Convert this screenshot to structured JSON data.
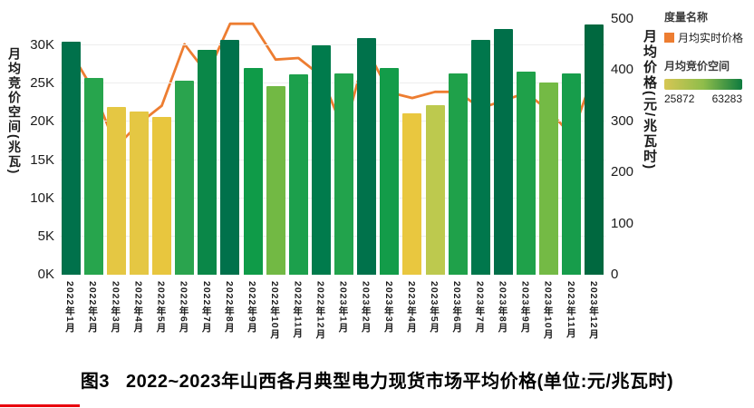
{
  "chart_data": {
    "type": "bar+line",
    "title": "",
    "categories": [
      "2022年1月",
      "2022年2月",
      "2022年3月",
      "2022年4月",
      "2022年5月",
      "2022年6月",
      "2022年7月",
      "2022年8月",
      "2022年9月",
      "2022年10月",
      "2022年11月",
      "2022年12月",
      "2023年1月",
      "2023年2月",
      "2023年3月",
      "2023年4月",
      "2023年5月",
      "2023年6月",
      "2023年7月",
      "2023年8月",
      "2023年9月",
      "2023年10月",
      "2023年11月",
      "2023年12月"
    ],
    "series": [
      {
        "name": "月均竞价空间",
        "type": "bar",
        "axis": "left",
        "values": [
          30500,
          25800,
          22000,
          21300,
          20700,
          25400,
          29400,
          30700,
          27100,
          24700,
          26200,
          30000,
          26300,
          31000,
          27100,
          21100,
          22200,
          26300,
          30700,
          32200,
          26600,
          25100,
          26300,
          32800
        ],
        "colors": [
          "#00714B",
          "#27A54D",
          "#E5C743",
          "#E5C743",
          "#E8C63E",
          "#2AA44E",
          "#0A8748",
          "#00714B",
          "#0F9B48",
          "#72B944",
          "#1CA04C",
          "#007B4C",
          "#22A34C",
          "#00724B",
          "#139C49",
          "#E9C73F",
          "#BDC94E",
          "#1FA14A",
          "#00774C",
          "#006F49",
          "#1FA14A",
          "#74BA45",
          "#179D4B",
          "#00683F"
        ]
      },
      {
        "name": "月均实时价格",
        "type": "line",
        "axis": "right",
        "color": "#ED7D31",
        "values": [
          435,
          360,
          250,
          295,
          330,
          450,
          392,
          490,
          490,
          420,
          423,
          388,
          280,
          440,
          356,
          345,
          357,
          357,
          325,
          340,
          355,
          320,
          272,
          395
        ]
      }
    ],
    "left_axis": {
      "title": "月均竞价空间(兆瓦)",
      "ticks": [
        "0K",
        "5K",
        "10K",
        "15K",
        "20K",
        "25K",
        "30K"
      ],
      "range": [
        0,
        30000
      ],
      "grid": true
    },
    "right_axis": {
      "title": "月均价格(元/兆瓦时)",
      "ticks": [
        "0",
        "100",
        "200",
        "300",
        "400",
        "500"
      ],
      "range": [
        0,
        500
      ],
      "grid": false
    },
    "legend": {
      "title": "度量名称",
      "position": "top-right",
      "line": {
        "label": "月均实时价格",
        "color": "#ED7D31"
      },
      "bar": {
        "label": "月均竞价空间",
        "gradient_colors": [
          "#D6C654",
          "#8FBD4B",
          "#0E7B3F"
        ],
        "min": "25872",
        "max": "63283"
      }
    }
  },
  "caption": {
    "prefix": "图3",
    "text": "2022~2023年山西各月典型电力现货市场平均价格(单位:元/兆瓦时)"
  }
}
